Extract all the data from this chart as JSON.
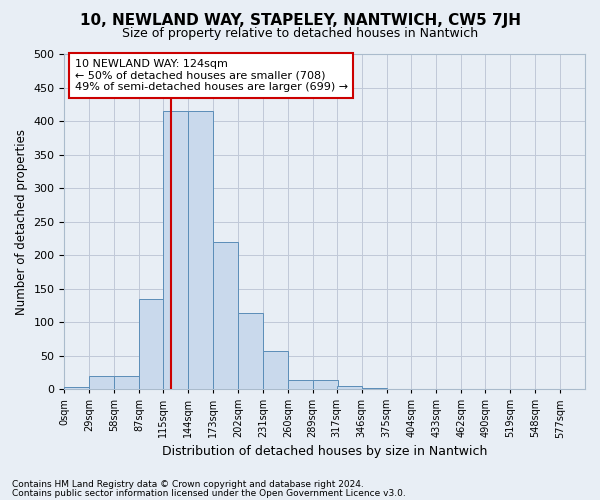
{
  "title": "10, NEWLAND WAY, STAPELEY, NANTWICH, CW5 7JH",
  "subtitle": "Size of property relative to detached houses in Nantwich",
  "xlabel": "Distribution of detached houses by size in Nantwich",
  "ylabel": "Number of detached properties",
  "bin_edges": [
    0,
    29,
    58,
    87,
    115,
    144,
    173,
    202,
    231,
    260,
    289,
    317,
    346,
    375,
    404,
    433,
    462,
    490,
    519,
    548,
    577
  ],
  "bar_heights": [
    3,
    20,
    20,
    135,
    415,
    415,
    220,
    113,
    57,
    13,
    13,
    5,
    2,
    0,
    0,
    0,
    0,
    0,
    0,
    0
  ],
  "bar_color": "#c9d9ec",
  "bar_edgecolor": "#5b8db8",
  "grid_color": "#c0c8d8",
  "bg_color": "#e8eef5",
  "vline_x": 124,
  "vline_color": "#cc0000",
  "annotation_text": "10 NEWLAND WAY: 124sqm\n← 50% of detached houses are smaller (708)\n49% of semi-detached houses are larger (699) →",
  "annotation_box_color": "#ffffff",
  "annotation_box_edgecolor": "#cc0000",
  "footnote1": "Contains HM Land Registry data © Crown copyright and database right 2024.",
  "footnote2": "Contains public sector information licensed under the Open Government Licence v3.0.",
  "ylim": [
    0,
    500
  ],
  "tick_labels": [
    "0sqm",
    "29sqm",
    "58sqm",
    "87sqm",
    "115sqm",
    "144sqm",
    "173sqm",
    "202sqm",
    "231sqm",
    "260sqm",
    "289sqm",
    "317sqm",
    "346sqm",
    "375sqm",
    "404sqm",
    "433sqm",
    "462sqm",
    "490sqm",
    "519sqm",
    "548sqm",
    "577sqm"
  ]
}
